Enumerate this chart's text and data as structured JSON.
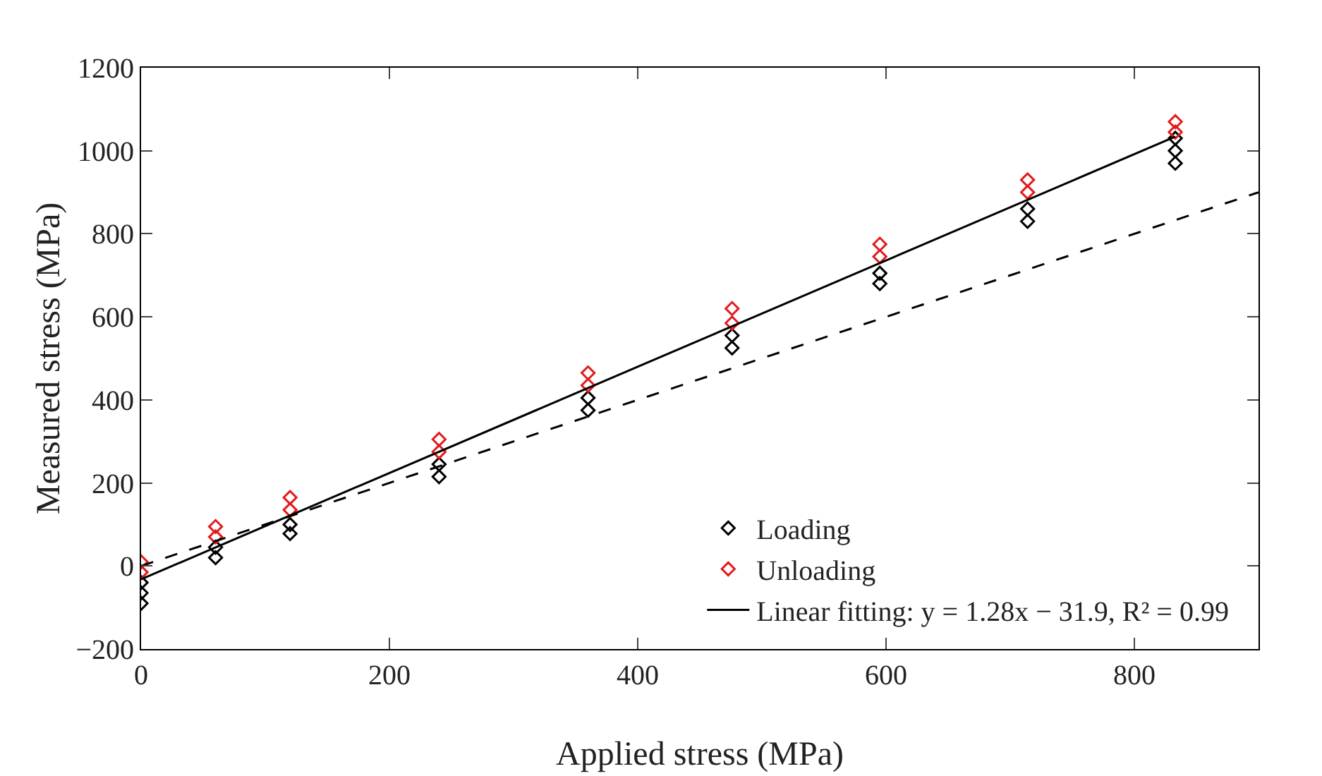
{
  "chart_data": {
    "type": "scatter",
    "xlabel": "Applied stress (MPa)",
    "ylabel": "Measured stress (MPa)",
    "xlim": [
      0,
      900
    ],
    "ylim": [
      -200,
      1200
    ],
    "xticks": [
      0,
      200,
      400,
      600,
      800
    ],
    "yticks": [
      -200,
      0,
      200,
      400,
      600,
      800,
      1000,
      1200
    ],
    "grid": false,
    "legend": "bottom right",
    "marker": "diamond",
    "series": [
      {
        "name": "Loading",
        "color": "#000000",
        "x": [
          0,
          0,
          0,
          60,
          60,
          120,
          120,
          240,
          240,
          360,
          360,
          476,
          476,
          595,
          595,
          714,
          714,
          833,
          833,
          833
        ],
        "values": [
          -90,
          -65,
          -40,
          20,
          45,
          78,
          100,
          215,
          245,
          375,
          405,
          525,
          555,
          680,
          705,
          830,
          860,
          970,
          1000,
          1030
        ]
      },
      {
        "name": "Unloading",
        "color": "#e41a1c",
        "x": [
          0,
          0,
          60,
          60,
          120,
          120,
          240,
          240,
          360,
          360,
          476,
          476,
          595,
          595,
          714,
          714,
          833,
          833
        ],
        "values": [
          -15,
          10,
          70,
          95,
          135,
          165,
          275,
          305,
          435,
          465,
          585,
          620,
          745,
          775,
          900,
          930,
          1045,
          1070
        ]
      },
      {
        "type": "line",
        "name": "Linear fitting: y = 1.28x − 31.9, R² = 0.99",
        "color": "#000000",
        "line_style": "solid",
        "marker": "none",
        "x": [
          0,
          833
        ],
        "values": [
          -32,
          1034
        ]
      },
      {
        "type": "line",
        "color": "#000000",
        "line_style": "dashed",
        "marker": "none",
        "x": [
          0,
          900
        ],
        "values": [
          0,
          900
        ]
      }
    ]
  }
}
